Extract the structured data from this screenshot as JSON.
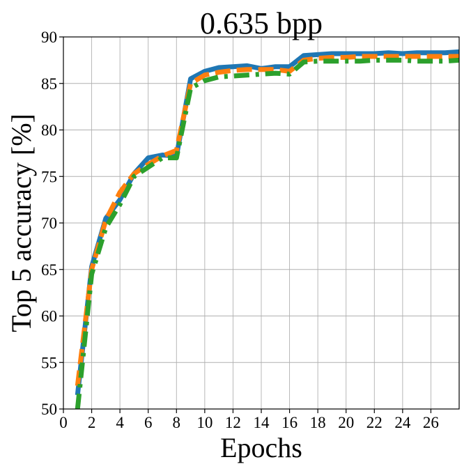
{
  "chart_data": {
    "type": "line",
    "title": "0.635 bpp",
    "xlabel": "Epochs",
    "ylabel": "Top 5 accuracy [%]",
    "xlim": [
      0,
      28
    ],
    "ylim": [
      50,
      90
    ],
    "xticks": [
      0,
      2,
      4,
      6,
      8,
      10,
      12,
      14,
      16,
      18,
      20,
      22,
      24,
      26
    ],
    "yticks": [
      50,
      55,
      60,
      65,
      70,
      75,
      80,
      85,
      90
    ],
    "grid": true,
    "x": [
      1,
      2,
      3,
      4,
      5,
      6,
      7,
      8,
      9,
      10,
      11,
      12,
      13,
      14,
      15,
      16,
      17,
      18,
      19,
      20,
      21,
      22,
      23,
      24,
      25,
      26,
      27,
      28
    ],
    "series": [
      {
        "color": "#1f77b4",
        "style": "solid",
        "values": [
          51.5,
          65.3,
          70.5,
          72.5,
          75.3,
          77.0,
          77.3,
          77.2,
          85.5,
          86.3,
          86.7,
          86.8,
          86.9,
          86.6,
          86.8,
          86.8,
          88.0,
          88.1,
          88.2,
          88.2,
          88.2,
          88.2,
          88.3,
          88.2,
          88.3,
          88.3,
          88.3,
          88.4
        ]
      },
      {
        "color": "#ff7f0e",
        "style": "dashed",
        "values": [
          52.5,
          65.0,
          70.3,
          73.3,
          75.3,
          76.3,
          77.2,
          77.8,
          85.0,
          85.9,
          86.2,
          86.4,
          86.5,
          86.5,
          86.5,
          86.3,
          87.5,
          87.7,
          87.8,
          87.8,
          87.9,
          87.9,
          87.9,
          87.9,
          87.9,
          87.9,
          87.9,
          87.9
        ]
      },
      {
        "color": "#2ca02c",
        "style": "dashdot",
        "values": [
          50.0,
          64.5,
          69.5,
          72.0,
          75.0,
          76.0,
          77.0,
          77.0,
          84.5,
          85.3,
          85.7,
          85.8,
          85.9,
          86.0,
          86.1,
          86.0,
          87.3,
          87.4,
          87.4,
          87.4,
          87.4,
          87.5,
          87.5,
          87.5,
          87.4,
          87.4,
          87.4,
          87.5
        ]
      }
    ]
  }
}
